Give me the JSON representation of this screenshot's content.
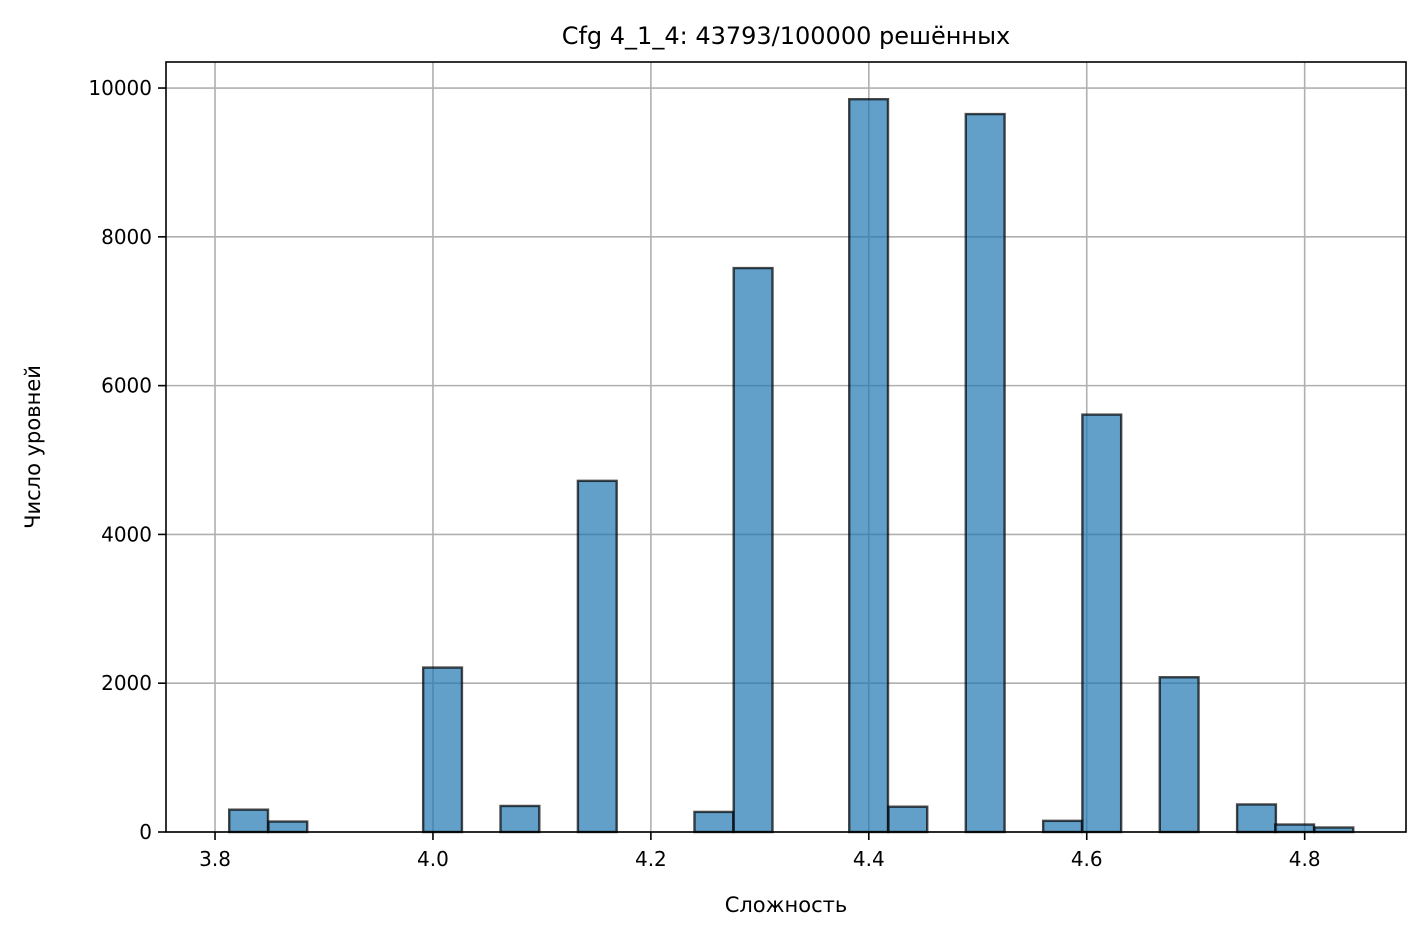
{
  "chart_data": {
    "type": "bar",
    "title": "Cfg 4_1_4: 43793/100000 решённых",
    "xlabel": "Сложность",
    "ylabel": "Число уровней",
    "xlim": [
      3.755,
      4.893
    ],
    "ylim": [
      0,
      10350
    ],
    "grid": true,
    "bar_color": "#1f77b4",
    "bar_edge_color": "#000000",
    "xticks": [
      3.8,
      4.0,
      4.2,
      4.4,
      4.6,
      4.8
    ],
    "xtick_labels": [
      "3.8",
      "4.0",
      "4.2",
      "4.4",
      "4.6",
      "4.8"
    ],
    "yticks": [
      0,
      2000,
      4000,
      6000,
      8000,
      10000
    ],
    "ytick_labels": [
      "0",
      "2000",
      "4000",
      "6000",
      "8000",
      "10000"
    ],
    "bin_width": 0.0356,
    "bins": [
      {
        "x0": 3.813,
        "value": 300
      },
      {
        "x0": 3.849,
        "value": 140
      },
      {
        "x0": 3.991,
        "value": 2210
      },
      {
        "x0": 4.062,
        "value": 350
      },
      {
        "x0": 4.133,
        "value": 4720
      },
      {
        "x0": 4.24,
        "value": 270
      },
      {
        "x0": 4.276,
        "value": 7580
      },
      {
        "x0": 4.382,
        "value": 9850
      },
      {
        "x0": 4.418,
        "value": 340
      },
      {
        "x0": 4.489,
        "value": 9650
      },
      {
        "x0": 4.56,
        "value": 150
      },
      {
        "x0": 4.596,
        "value": 5610
      },
      {
        "x0": 4.667,
        "value": 2080
      },
      {
        "x0": 4.738,
        "value": 370
      },
      {
        "x0": 4.773,
        "value": 100
      },
      {
        "x0": 4.809,
        "value": 60
      }
    ]
  }
}
